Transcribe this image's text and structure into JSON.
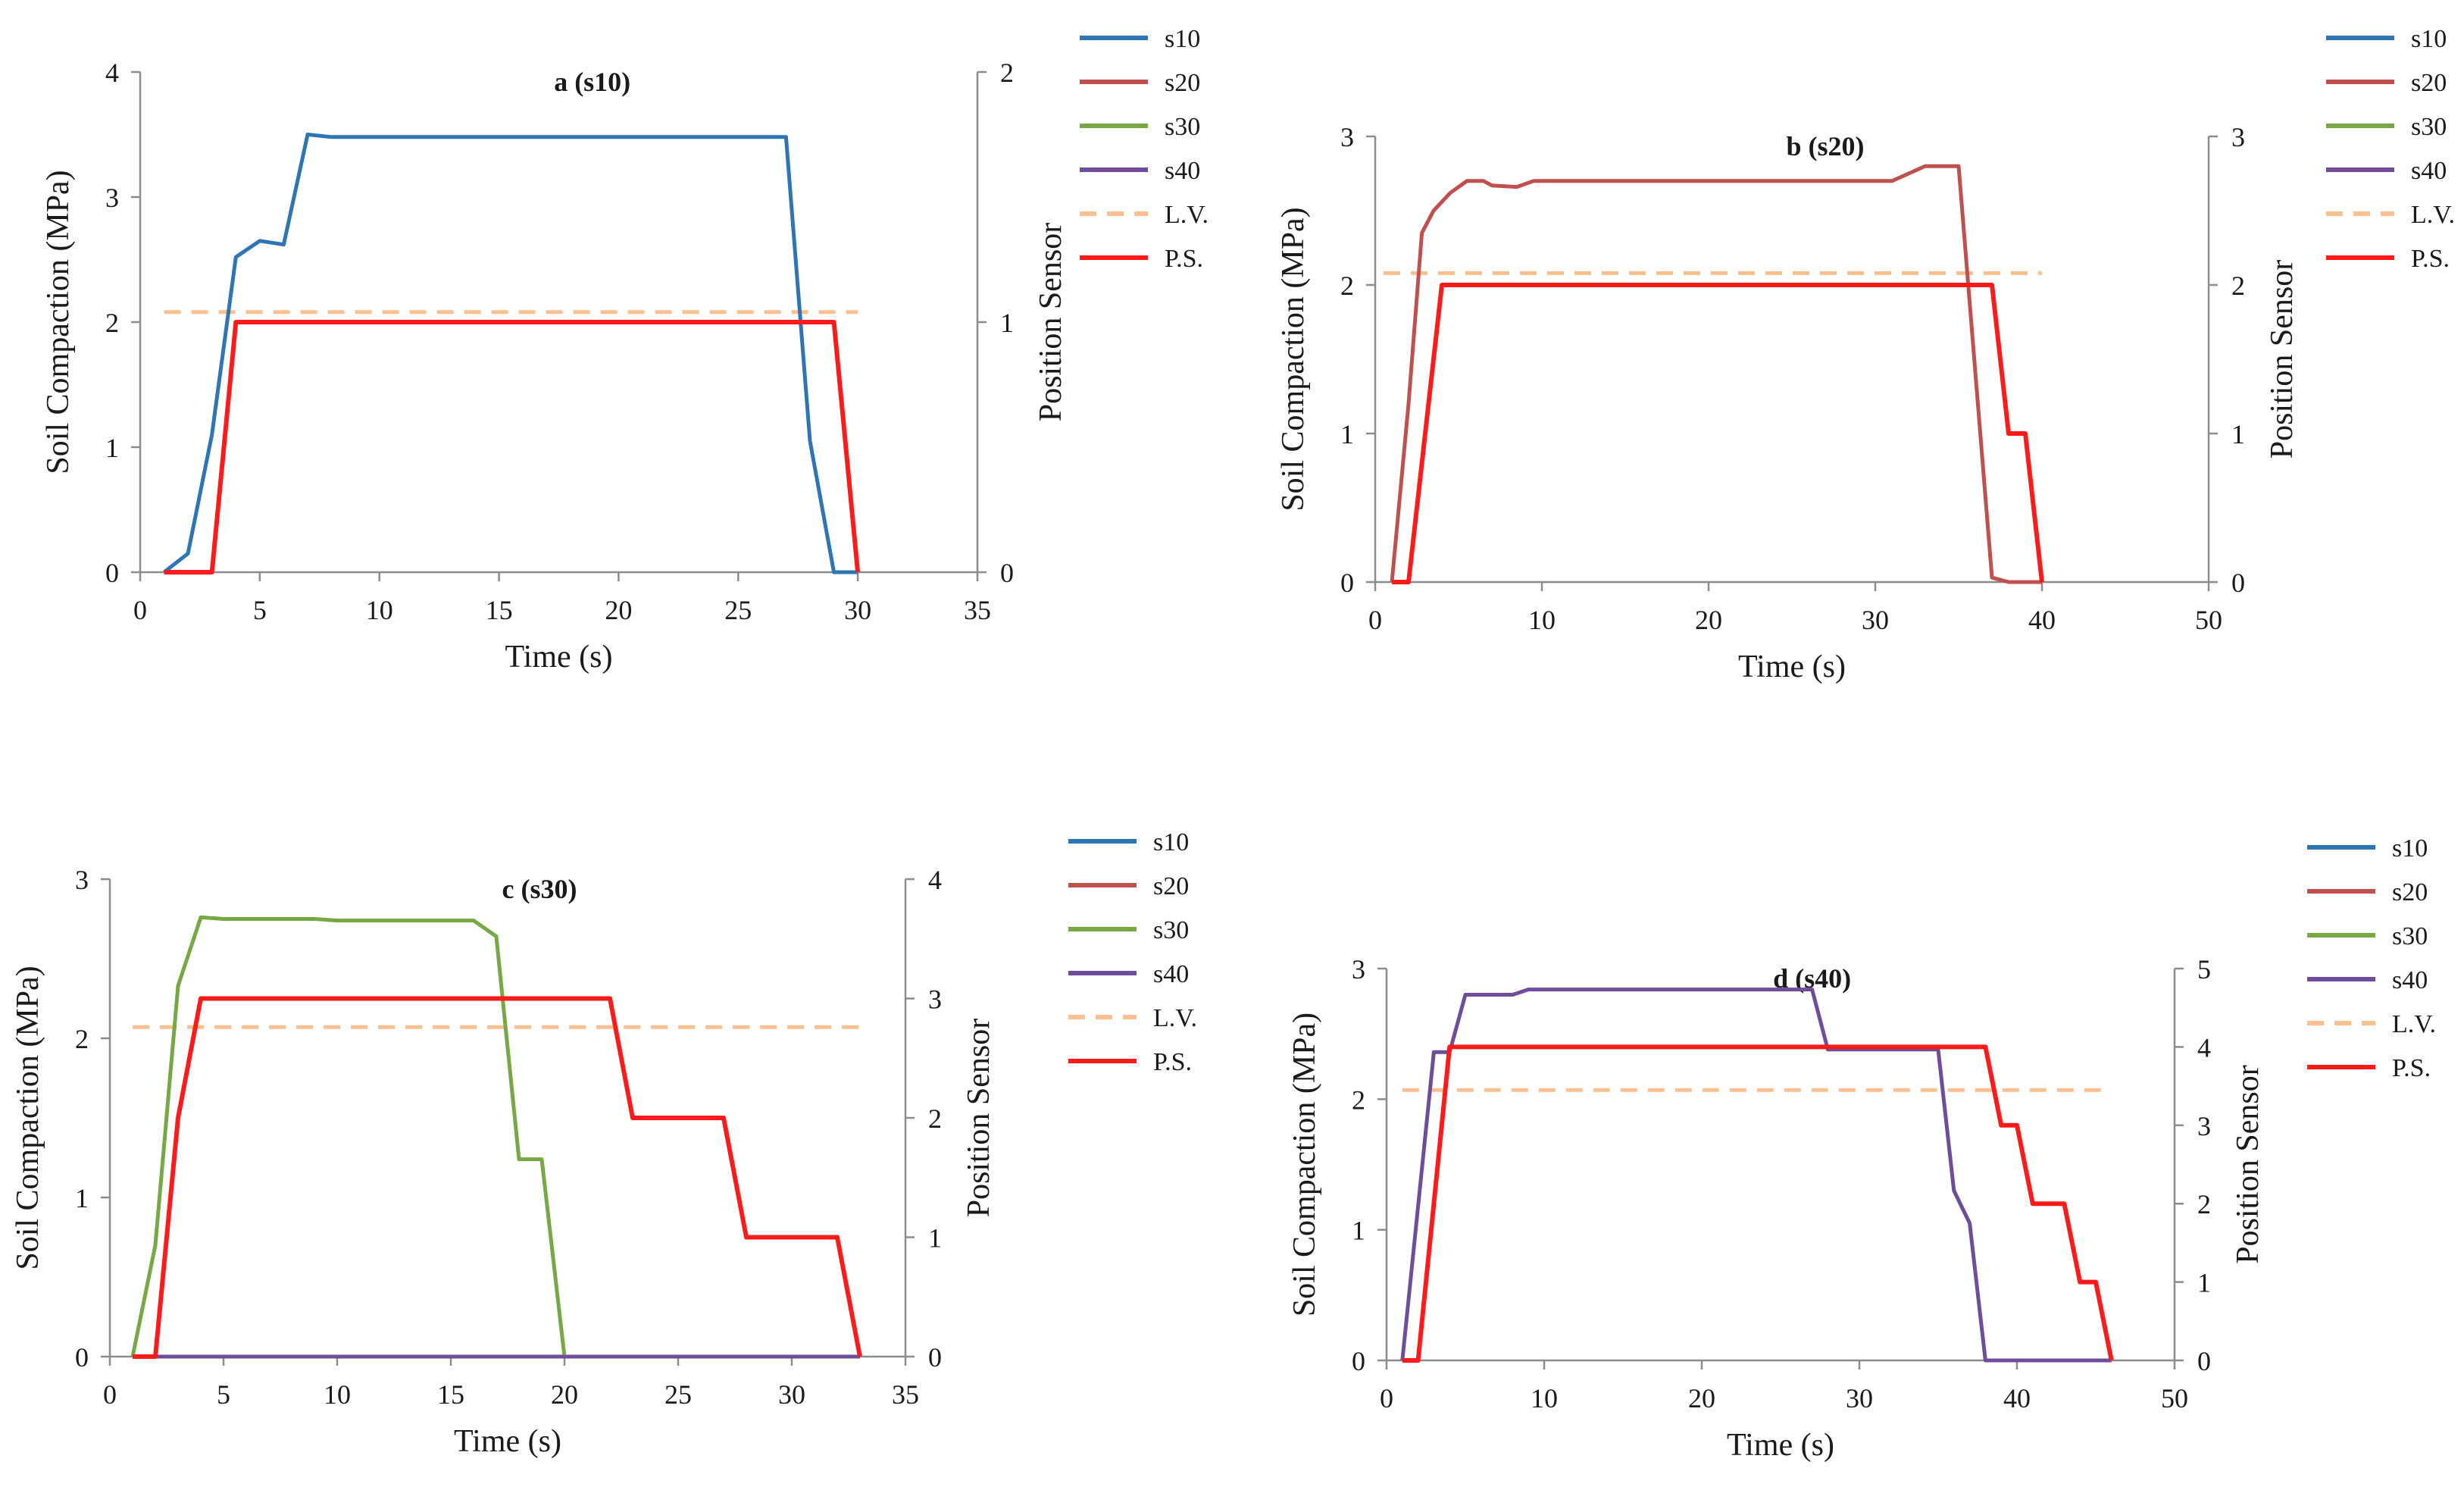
{
  "figure": {
    "legend_labels": [
      "s10",
      "s20",
      "s30",
      "s40",
      "L.V.",
      "P.S."
    ],
    "legend_colors": [
      "#2e75b6",
      "#c0504d",
      "#77a843",
      "#6f4d9b",
      "#fac090",
      "#ff1a1a"
    ],
    "legend_dashed": [
      false,
      false,
      false,
      false,
      true,
      false
    ]
  },
  "chart_data": [
    {
      "type": "line",
      "title": "a (s10)",
      "xlabel": "Time (s)",
      "ylabel": "Soil Compaction (MPa)",
      "y2label": "Position Sensor",
      "xlim": [
        0,
        35
      ],
      "ylim": [
        0,
        4
      ],
      "y2lim": [
        0,
        2
      ],
      "xticks": [
        0,
        5,
        10,
        15,
        20,
        25,
        30,
        35
      ],
      "yticks": [
        0,
        1,
        2,
        3,
        4
      ],
      "y2ticks": [
        0,
        1,
        2
      ],
      "grid": false,
      "legend_position": "right",
      "lv": [
        1,
        30,
        2.08
      ],
      "series": [
        {
          "name": "s10",
          "axis": "left",
          "color": "#2e75b6",
          "points": [
            [
              1,
              0
            ],
            [
              2,
              0.15
            ],
            [
              3,
              1.1
            ],
            [
              4,
              2.52
            ],
            [
              5,
              2.65
            ],
            [
              6,
              2.62
            ],
            [
              7,
              3.5
            ],
            [
              8,
              3.48
            ],
            [
              27,
              3.48
            ],
            [
              28,
              1.05
            ],
            [
              29,
              0
            ],
            [
              30,
              0
            ]
          ]
        },
        {
          "name": "P.S.",
          "axis": "right",
          "color": "#ff1a1a",
          "points": [
            [
              1,
              0
            ],
            [
              3,
              0
            ],
            [
              4,
              1
            ],
            [
              29,
              1
            ],
            [
              30,
              0
            ]
          ]
        }
      ]
    },
    {
      "type": "line",
      "title": "b (s20)",
      "xlabel": "Time (s)",
      "ylabel": "Soil Compaction (MPa)",
      "y2label": "Position Sensor",
      "xlim": [
        0,
        50
      ],
      "ylim": [
        0,
        3
      ],
      "y2lim": [
        0,
        3
      ],
      "xticks": [
        0,
        10,
        20,
        30,
        40,
        50
      ],
      "yticks": [
        0,
        1,
        2,
        3
      ],
      "y2ticks": [
        0,
        1,
        2,
        3
      ],
      "grid": false,
      "legend_position": "right",
      "lv": [
        0.5,
        40,
        2.08
      ],
      "series": [
        {
          "name": "s20",
          "axis": "left",
          "color": "#c0504d",
          "points": [
            [
              1,
              0
            ],
            [
              2,
              1.2
            ],
            [
              2.8,
              2.35
            ],
            [
              3.5,
              2.5
            ],
            [
              4.5,
              2.62
            ],
            [
              5.5,
              2.7
            ],
            [
              6.5,
              2.7
            ],
            [
              7,
              2.67
            ],
            [
              8.5,
              2.66
            ],
            [
              9.5,
              2.7
            ],
            [
              31,
              2.7
            ],
            [
              32,
              2.75
            ],
            [
              33,
              2.8
            ],
            [
              35,
              2.8
            ],
            [
              37,
              0.03
            ],
            [
              38,
              0
            ],
            [
              40,
              0
            ]
          ]
        },
        {
          "name": "P.S.",
          "axis": "right",
          "color": "#ff1a1a",
          "points": [
            [
              1,
              0
            ],
            [
              2,
              0
            ],
            [
              4,
              2
            ],
            [
              37,
              2
            ],
            [
              38,
              1
            ],
            [
              39,
              1
            ],
            [
              40,
              0
            ]
          ]
        }
      ]
    },
    {
      "type": "line",
      "title": "c (s30)",
      "xlabel": "Time (s)",
      "ylabel": "Soil Compaction (MPa)",
      "y2label": "Position Sensor",
      "xlim": [
        0,
        35
      ],
      "ylim": [
        0,
        3
      ],
      "y2lim": [
        0,
        4
      ],
      "xticks": [
        0,
        5,
        10,
        15,
        20,
        25,
        30,
        35
      ],
      "yticks": [
        0,
        1,
        2,
        3
      ],
      "y2ticks": [
        0,
        1,
        2,
        3,
        4
      ],
      "grid": false,
      "legend_position": "right",
      "lv": [
        1,
        33,
        2.07
      ],
      "series": [
        {
          "name": "s30",
          "axis": "left",
          "color": "#77a843",
          "points": [
            [
              1,
              0
            ],
            [
              2,
              0.7
            ],
            [
              3,
              2.33
            ],
            [
              4,
              2.76
            ],
            [
              5,
              2.75
            ],
            [
              9,
              2.75
            ],
            [
              10,
              2.74
            ],
            [
              16,
              2.74
            ],
            [
              17,
              2.64
            ],
            [
              18,
              1.24
            ],
            [
              19,
              1.24
            ],
            [
              20,
              0
            ]
          ]
        },
        {
          "name": "s40",
          "axis": "left",
          "color": "#6f4d9b",
          "points": [
            [
              1,
              0
            ],
            [
              33,
              0
            ]
          ]
        },
        {
          "name": "P.S.",
          "axis": "right",
          "color": "#ff1a1a",
          "points": [
            [
              1,
              0
            ],
            [
              2,
              0
            ],
            [
              3,
              2
            ],
            [
              4,
              3
            ],
            [
              22,
              3
            ],
            [
              23,
              2
            ],
            [
              27,
              2
            ],
            [
              28,
              1
            ],
            [
              32,
              1
            ],
            [
              33,
              0
            ]
          ]
        }
      ]
    },
    {
      "type": "line",
      "title": "d (s40)",
      "xlabel": "Time (s)",
      "ylabel": "Soil Compaction (MPa)",
      "y2label": "Position Sensor",
      "xlim": [
        0,
        50
      ],
      "ylim": [
        0,
        3
      ],
      "y2lim": [
        0,
        5
      ],
      "xticks": [
        0,
        10,
        20,
        30,
        40,
        50
      ],
      "yticks": [
        0,
        1,
        2,
        3
      ],
      "y2ticks": [
        0,
        1,
        2,
        3,
        4,
        5
      ],
      "grid": false,
      "legend_position": "right",
      "lv": [
        1,
        46,
        2.07
      ],
      "series": [
        {
          "name": "s40",
          "axis": "left",
          "color": "#6f4d9b",
          "points": [
            [
              1,
              0
            ],
            [
              3,
              2.36
            ],
            [
              4,
              2.36
            ],
            [
              5,
              2.8
            ],
            [
              8,
              2.8
            ],
            [
              9,
              2.84
            ],
            [
              27,
              2.84
            ],
            [
              28,
              2.38
            ],
            [
              35,
              2.38
            ],
            [
              36,
              1.3
            ],
            [
              37,
              1.05
            ],
            [
              38,
              0
            ],
            [
              46,
              0
            ]
          ]
        },
        {
          "name": "P.S.",
          "axis": "right",
          "color": "#ff1a1a",
          "points": [
            [
              1,
              0
            ],
            [
              2,
              0
            ],
            [
              4,
              4
            ],
            [
              38,
              4
            ],
            [
              39,
              3
            ],
            [
              40,
              3
            ],
            [
              41,
              2
            ],
            [
              43,
              2
            ],
            [
              44,
              1
            ],
            [
              45,
              1
            ],
            [
              46,
              0
            ]
          ]
        }
      ]
    }
  ]
}
